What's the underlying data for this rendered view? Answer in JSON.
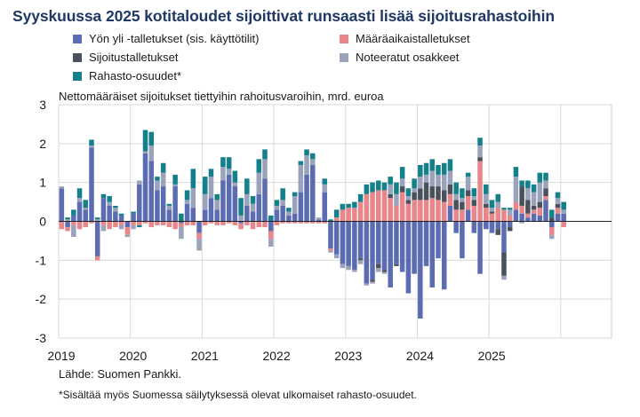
{
  "title": "Syyskuussa 2025 kotitaloudet sijoittivat runsaasti lisää sijoitusrahastoihin",
  "subtitle": "Nettomääräiset sijoitukset tiettyihin rahoitusvaroihin, mrd. euroa",
  "source": "Lähde: Suomen Pankki.",
  "footnote": "*Sisältää myös Suomessa säilytyksessä olevat ulkomaiset rahasto-osuudet.",
  "legend": [
    {
      "name": "Yön yli -talletukset (sis. käyttötilit)",
      "color": "#5b6cb3"
    },
    {
      "name": "Määräaikaistalletukset",
      "color": "#e8868a"
    },
    {
      "name": "Sijoitustalletukset",
      "color": "#4a505c"
    },
    {
      "name": "Noteeratut osakkeet",
      "color": "#9aa3bb"
    },
    {
      "name": "Rahasto-osuudet*",
      "color": "#14808a"
    }
  ],
  "chart_data": {
    "type": "bar",
    "stacked": true,
    "ylim": [
      -3,
      3
    ],
    "yticks": [
      -3,
      -2,
      -1,
      0,
      1,
      2,
      3
    ],
    "year_labels": [
      "2019",
      "2020",
      "2021",
      "2022",
      "2023",
      "2024",
      "2025"
    ],
    "start": "2019-01",
    "grid": true,
    "series": [
      {
        "name": "Yön yli -talletukset (sis. käyttötilit)",
        "color": "#5b6cb3",
        "values": [
          0.85,
          -0.15,
          0.15,
          0.5,
          0.3,
          1.9,
          -0.9,
          0.6,
          0.4,
          0.25,
          0.15,
          -0.15,
          0.2,
          0.95,
          1.75,
          1.55,
          0.8,
          0.9,
          0.3,
          0.9,
          -0.05,
          0.45,
          0.35,
          -0.3,
          0.3,
          0.6,
          0.3,
          1.05,
          1.2,
          0.9,
          -0.05,
          0.4,
          0.25,
          0.7,
          1.1,
          -0.25,
          0.3,
          0.4,
          0.15,
          0.2,
          0.75,
          1.2,
          1.45,
          0.05,
          0.75,
          -0.7,
          -0.85,
          -1.1,
          -1.15,
          -1.25,
          -0.95,
          -1.6,
          -1.5,
          -1.1,
          -1.25,
          -1.7,
          -1.1,
          -1.3,
          -1.85,
          -1.35,
          -2.5,
          -1.15,
          -1.7,
          -0.95,
          -1.75,
          0.4,
          -0.3,
          -0.95,
          0.3,
          -0.3,
          -1.35,
          -0.2,
          -0.3,
          -0.2,
          -0.8,
          -0.15,
          0.3,
          0.2,
          0.1,
          0.2,
          0.15,
          0.55,
          -0.15,
          0.2,
          0.2
        ]
      },
      {
        "name": "Määräaikaistalletukset",
        "color": "#e8868a",
        "values": [
          -0.2,
          -0.1,
          -0.1,
          -0.2,
          -0.15,
          -0.05,
          -0.1,
          -0.1,
          -0.2,
          -0.15,
          -0.1,
          -0.2,
          -0.1,
          -0.1,
          -0.05,
          -0.15,
          -0.1,
          -0.1,
          -0.15,
          -0.2,
          -0.1,
          -0.1,
          -0.1,
          -0.15,
          -0.1,
          -0.05,
          -0.1,
          -0.1,
          -0.05,
          -0.1,
          -0.15,
          -0.1,
          -0.2,
          -0.15,
          -0.15,
          -0.2,
          -0.1,
          -0.05,
          -0.05,
          -0.05,
          -0.05,
          -0.05,
          -0.05,
          -0.05,
          -0.05,
          -0.05,
          0.1,
          0.3,
          0.35,
          0.35,
          0.5,
          0.7,
          0.75,
          0.8,
          0.8,
          0.6,
          0.4,
          0.75,
          0.45,
          0.55,
          0.55,
          0.55,
          0.6,
          0.55,
          0.5,
          0.3,
          0.3,
          0.3,
          0.35,
          0.4,
          1.55,
          0.35,
          0.2,
          0.35,
          0.3,
          0.15,
          0.2,
          0.2,
          0.1,
          0.1,
          0.2,
          0.1,
          -0.2,
          0.15,
          -0.15
        ]
      },
      {
        "name": "Sijoitustalletukset",
        "color": "#4a505c",
        "values": [
          0,
          0,
          0,
          0,
          0,
          0,
          0,
          0,
          0,
          0,
          0,
          0,
          0,
          0,
          0,
          0,
          0,
          0,
          0,
          0,
          0,
          0,
          0,
          0,
          0,
          0,
          0,
          0,
          0,
          0,
          0,
          0,
          0,
          0,
          0,
          0,
          0,
          0,
          0,
          0,
          0,
          0,
          0,
          0,
          0,
          0,
          0,
          0,
          0,
          0,
          -0.05,
          0,
          -0.05,
          -0.1,
          -0.05,
          0.1,
          -0.05,
          0.15,
          0.1,
          0.2,
          0.3,
          0.45,
          0.3,
          0.35,
          0.3,
          0.25,
          0.25,
          0.2,
          0.15,
          0.15,
          0.1,
          0.1,
          0.05,
          -0.15,
          -0.6,
          -0.1,
          0,
          0.5,
          0.35,
          0.1,
          0.15,
          0.2,
          0.1,
          0.1,
          0
        ]
      },
      {
        "name": "Noteeratut osakkeet",
        "color": "#9aa3bb",
        "values": [
          0.05,
          0.05,
          -0.3,
          0.1,
          0.05,
          0.05,
          0.05,
          -0.15,
          0.1,
          0.1,
          -0.1,
          -0.05,
          -0.1,
          0.1,
          0.05,
          0.4,
          0.25,
          0.35,
          0.1,
          0.05,
          -0.3,
          0.1,
          0.5,
          -0.3,
          0.4,
          0.55,
          0.25,
          0.35,
          0.15,
          0.1,
          0.15,
          0.3,
          0.2,
          0.55,
          0.5,
          -0.2,
          0.1,
          0.15,
          0.1,
          0.45,
          0.7,
          0.5,
          0.15,
          0.05,
          0.2,
          -0.05,
          -0.1,
          -0.1,
          -0.1,
          -0.05,
          -0.1,
          -0.05,
          -0.05,
          -0.1,
          -0.05,
          0.25,
          0.3,
          0.2,
          0.1,
          0.1,
          0.3,
          0.2,
          0.4,
          0.3,
          0.4,
          0.35,
          0.15,
          0.1,
          0.35,
          0.1,
          0.3,
          0.25,
          0.1,
          0.15,
          -0.1,
          0.15,
          0.65,
          -0.05,
          0.3,
          0.35,
          0.5,
          0.2,
          -0.1,
          0.15,
          0.1
        ]
      },
      {
        "name": "Rahasto-osuudet*",
        "color": "#14808a",
        "values": [
          0,
          0.05,
          0.15,
          0.25,
          0.2,
          0.15,
          0.05,
          0.1,
          0.15,
          0.05,
          0.05,
          0,
          0.05,
          -0.05,
          0.55,
          0.35,
          0.1,
          0.25,
          0.05,
          0.25,
          0.2,
          0.25,
          0.5,
          0,
          0.45,
          0.2,
          0.15,
          0.25,
          0.3,
          0.3,
          0.45,
          0.4,
          0.2,
          0.35,
          0.25,
          0.15,
          0.15,
          0.3,
          0.1,
          0.1,
          0.1,
          0.15,
          0.15,
          0,
          0.15,
          0.05,
          0.2,
          0.15,
          0.1,
          0.15,
          0.2,
          0.25,
          0.25,
          0.25,
          0.2,
          0.2,
          0.3,
          0.3,
          0.2,
          0.25,
          0.3,
          0.3,
          0.3,
          0.25,
          0.3,
          0.3,
          0.3,
          0.25,
          0.1,
          0.2,
          0.2,
          0.25,
          0.2,
          0.2,
          0.05,
          0.05,
          0.25,
          0.15,
          0.2,
          0.2,
          0.25,
          0.2,
          0.2,
          0.15,
          0.2
        ]
      }
    ]
  }
}
